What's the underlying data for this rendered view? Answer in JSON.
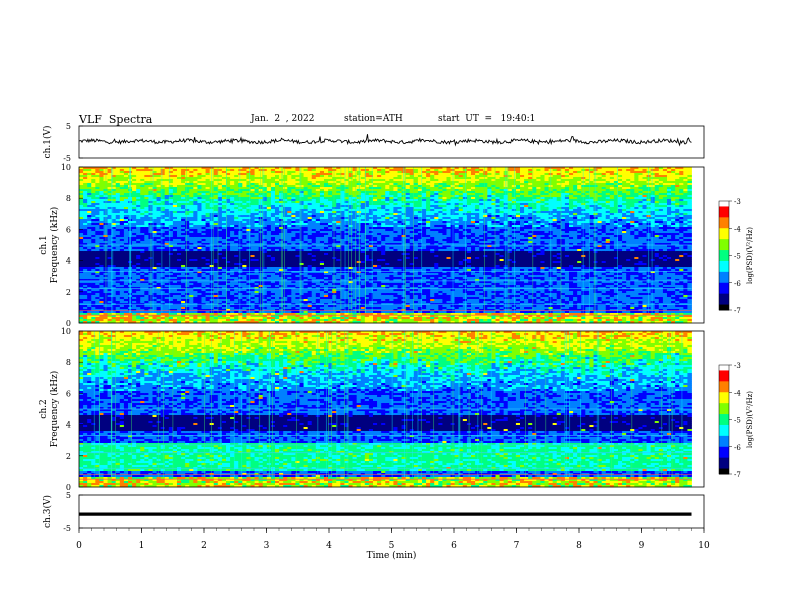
{
  "header": {
    "title": "VLF  Spectra",
    "date": "Jan.  2  , 2022",
    "station": "station=ATH",
    "start_ut": "start  UT  =   19:40:1"
  },
  "chart_data": [
    {
      "type": "line",
      "id": "ch1-waveform",
      "ylabel": "ch.1(V)",
      "ylim": [
        -5,
        5
      ],
      "yticks": [
        "5",
        "-5"
      ],
      "xlim": [
        0,
        10
      ],
      "baseline": 0.2
    },
    {
      "type": "heatmap",
      "id": "ch1-spectrogram",
      "ylabel": "ch.1 Frequency (kHz)",
      "ylim": [
        0,
        10
      ],
      "yticks": [
        "0",
        "2",
        "4",
        "6",
        "8",
        "10"
      ],
      "xlim": [
        0,
        10
      ],
      "data_end_min": 9.8,
      "colorbar": {
        "label": "log(PSD)(V²/Hz)",
        "range": [
          -7,
          -3
        ],
        "ticks": [
          "-3",
          "-4",
          "-5",
          "-6",
          "-7"
        ]
      }
    },
    {
      "type": "heatmap",
      "id": "ch2-spectrogram",
      "ylabel": "ch.2 Frequency (kHz)",
      "ylim": [
        0,
        10
      ],
      "yticks": [
        "0",
        "2",
        "4",
        "6",
        "8",
        "10"
      ],
      "xlim": [
        0,
        10
      ],
      "data_end_min": 9.8,
      "colorbar": {
        "label": "log(PSD)(V²/Hz)",
        "range": [
          -7,
          -3
        ],
        "ticks": [
          "-3",
          "-4",
          "-5",
          "-6",
          "-7"
        ]
      }
    },
    {
      "type": "line",
      "id": "ch3-waveform",
      "ylabel": "ch.3(V)",
      "ylim": [
        -5,
        5
      ],
      "yticks": [
        "5",
        "-5"
      ],
      "xlim": [
        0,
        10
      ],
      "baseline": -0.8
    }
  ],
  "xaxis": {
    "label": "Time  (min)",
    "ticks": [
      "0",
      "1",
      "2",
      "3",
      "4",
      "5",
      "6",
      "7",
      "8",
      "9",
      "10"
    ]
  },
  "colors": {
    "colormap": [
      "#000000",
      "#000080",
      "#0000ff",
      "#0080ff",
      "#00ffff",
      "#00ff80",
      "#80ff00",
      "#ffff00",
      "#ff8000",
      "#ff0000",
      "#ffffff"
    ]
  }
}
